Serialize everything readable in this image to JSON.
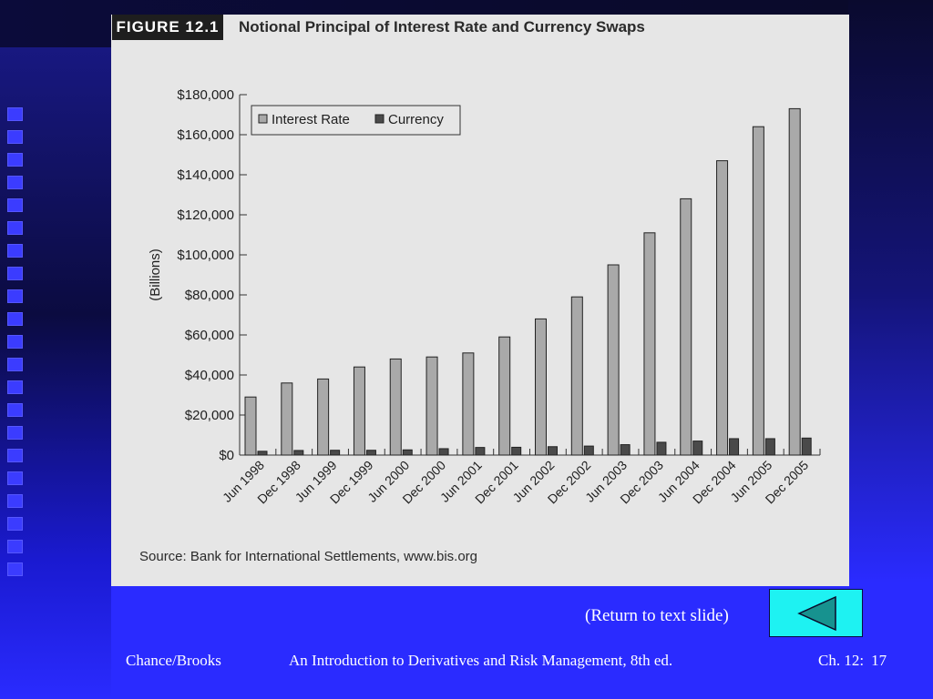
{
  "figure": {
    "label": "FIGURE 12.1",
    "title": "Notional Principal of Interest Rate and Currency Swaps",
    "source": "Source: Bank for International Settlements, www.bis.org"
  },
  "chart_data": {
    "type": "bar",
    "title": "Notional Principal of Interest Rate and Currency Swaps",
    "xlabel": "",
    "ylabel": "(Billions)",
    "ylim": [
      0,
      180000
    ],
    "yticks": [
      0,
      20000,
      40000,
      60000,
      80000,
      100000,
      120000,
      140000,
      160000,
      180000
    ],
    "ytick_labels": [
      "$0",
      "$20,000",
      "$40,000",
      "$60,000",
      "$80,000",
      "$100,000",
      "$120,000",
      "$140,000",
      "$160,000",
      "$180,000"
    ],
    "legend_position": "top-left",
    "grid": false,
    "categories": [
      "Jun 1998",
      "Dec 1998",
      "Jun 1999",
      "Dec 1999",
      "Jun 2000",
      "Dec 2000",
      "Jun 2001",
      "Dec 2001",
      "Jun 2002",
      "Dec 2002",
      "Jun 2003",
      "Dec 2003",
      "Jun 2004",
      "Dec 2004",
      "Jun 2005",
      "Dec 2005"
    ],
    "series": [
      {
        "name": "Interest Rate",
        "color": "#a9a9a9",
        "values": [
          29000,
          36000,
          38000,
          44000,
          48000,
          49000,
          51000,
          59000,
          68000,
          79000,
          95000,
          111000,
          128000,
          147000,
          164000,
          173000
        ]
      },
      {
        "name": "Currency",
        "color": "#4a4a4a",
        "values": [
          1900,
          2300,
          2400,
          2400,
          2600,
          3200,
          3800,
          3900,
          4200,
          4500,
          5200,
          6400,
          7000,
          8200,
          8200,
          8500
        ]
      }
    ]
  },
  "slide": {
    "return_link": "(Return to text slide)",
    "back_button_icon": "triangle-left-icon",
    "footer": {
      "author": "Chance/Brooks",
      "book": "An Introduction to Derivatives and Risk Management, 8th ed.",
      "chapter": "Ch. 12:",
      "page": "17"
    }
  }
}
